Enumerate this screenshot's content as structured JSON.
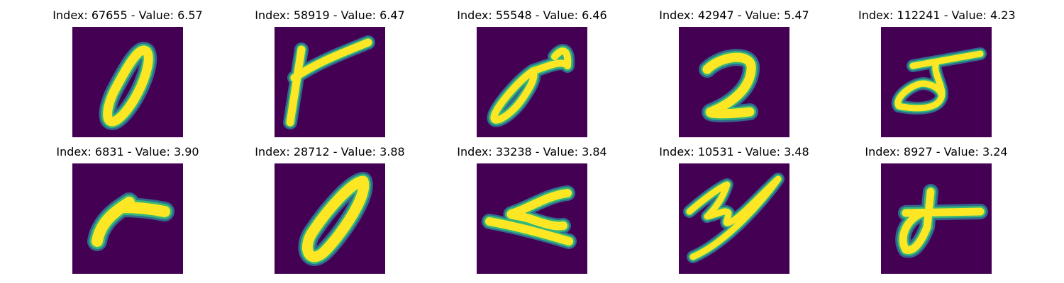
{
  "colors": {
    "background": "#440154",
    "edge_outer": "#31688e",
    "edge_inner": "#35b779",
    "ink": "#fde725"
  },
  "images": [
    {
      "title": "Index: 67655 - Value: 6.57",
      "glyph": "tilted-zero"
    },
    {
      "title": "Index: 58919 - Value: 6.47",
      "glyph": "branching-stroke"
    },
    {
      "title": "Index: 55548 - Value: 6.46",
      "glyph": "loop-with-tail"
    },
    {
      "title": "Index: 42947 - Value: 5.47",
      "glyph": "curled-hook"
    },
    {
      "title": "Index: 112241 - Value: 4.23",
      "glyph": "loop-with-bar"
    },
    {
      "title": "Index: 6831 - Value: 3.90",
      "glyph": "bent-stroke"
    },
    {
      "title": "Index: 28712 - Value: 3.88",
      "glyph": "tilted-zero"
    },
    {
      "title": "Index: 33238 - Value: 3.84",
      "glyph": "flat-hook"
    },
    {
      "title": "Index: 10531 - Value: 3.48",
      "glyph": "zigzag-stroke"
    },
    {
      "title": "Index: 8927 - Value: 3.24",
      "glyph": "cross-stroke"
    }
  ]
}
